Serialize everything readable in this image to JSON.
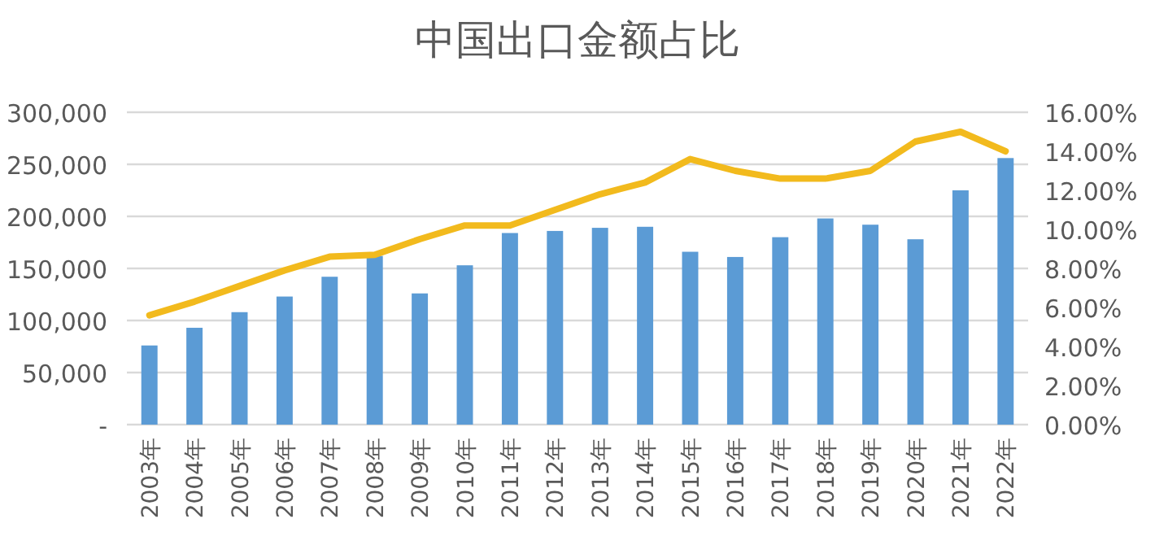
{
  "chart_data": {
    "type": "bar",
    "title": "中国出口金额占比",
    "categories": [
      "2003年",
      "2004年",
      "2005年",
      "2006年",
      "2007年",
      "2008年",
      "2009年",
      "2010年",
      "2011年",
      "2012年",
      "2013年",
      "2014年",
      "2015年",
      "2016年",
      "2017年",
      "2018年",
      "2019年",
      "2020年",
      "2021年",
      "2022年"
    ],
    "series": [
      {
        "color": "#5b9bd5",
        "values": [
          76000,
          93000,
          108000,
          123000,
          142000,
          162000,
          126000,
          153000,
          184000,
          186000,
          189000,
          190000,
          166000,
          161000,
          180000,
          198000,
          192000,
          178000,
          225000,
          256000
        ]
      },
      {
        "type": "line",
        "axis": "y2",
        "color": "#f2ba1d",
        "values": [
          5.6,
          6.3,
          7.1,
          7.9,
          8.6,
          8.7,
          9.5,
          10.2,
          10.2,
          11.0,
          11.8,
          12.4,
          13.6,
          13.0,
          12.6,
          12.6,
          13.0,
          14.5,
          15.0,
          14.0
        ]
      }
    ],
    "ylim": [
      0,
      300000
    ],
    "yticks": [
      {
        "value": 0,
        "label": "-"
      },
      {
        "value": 50000,
        "label": "50,000"
      },
      {
        "value": 100000,
        "label": "100,000"
      },
      {
        "value": 150000,
        "label": "150,000"
      },
      {
        "value": 200000,
        "label": "200,000"
      },
      {
        "value": 250000,
        "label": "250,000"
      },
      {
        "value": 300000,
        "label": "300,000"
      }
    ],
    "y2lim": [
      0,
      16
    ],
    "y2ticks": [
      {
        "value": 0,
        "label": "0.00%"
      },
      {
        "value": 2,
        "label": "2.00%"
      },
      {
        "value": 4,
        "label": "4.00%"
      },
      {
        "value": 6,
        "label": "6.00%"
      },
      {
        "value": 8,
        "label": "8.00%"
      },
      {
        "value": 10,
        "label": "10.00%"
      },
      {
        "value": 12,
        "label": "12.00%"
      },
      {
        "value": 14,
        "label": "14.00%"
      },
      {
        "value": 16,
        "label": "16.00%"
      }
    ],
    "grid": "y"
  }
}
